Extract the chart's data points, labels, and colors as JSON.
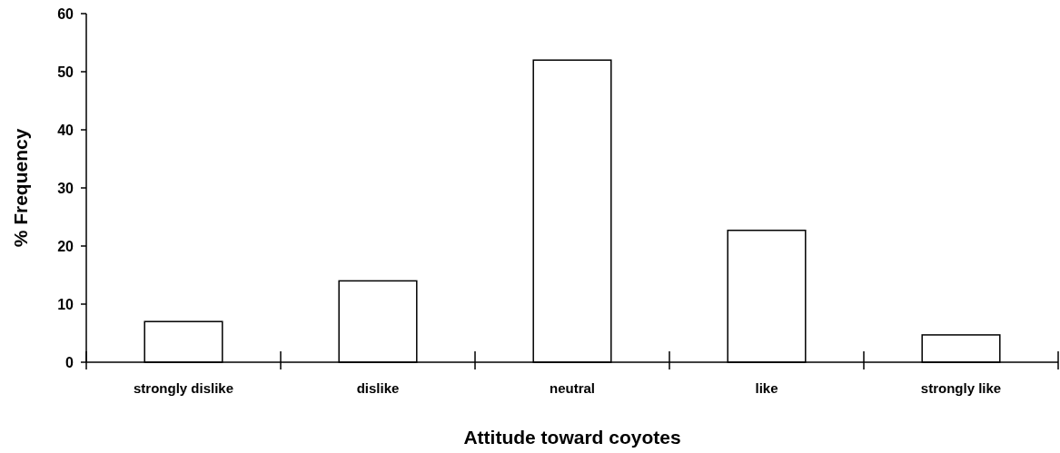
{
  "chart_data": {
    "type": "bar",
    "xlabel": "Attitude toward coyotes",
    "ylabel": "% Frequency",
    "categories": [
      "strongly dislike",
      "dislike",
      "neutral",
      "like",
      "strongly like"
    ],
    "values": [
      7,
      14,
      52,
      22.7,
      4.7
    ],
    "color": "#ffffff",
    "ylim": [
      0,
      60
    ],
    "yticks": [
      0,
      10,
      20,
      30,
      40,
      50,
      60
    ],
    "grid": false
  }
}
